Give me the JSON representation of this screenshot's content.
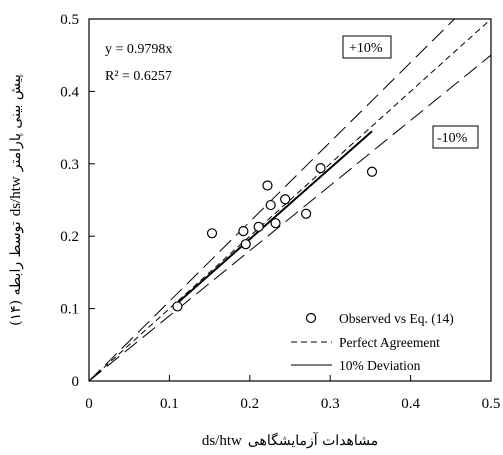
{
  "chart_data": {
    "type": "scatter",
    "xlim": [
      0,
      0.5
    ],
    "ylim": [
      0,
      0.5
    ],
    "x_ticks": [
      "0",
      "0.1",
      "0.2",
      "0.3",
      "0.4",
      "0.5"
    ],
    "y_ticks": [
      "0",
      "0.1",
      "0.2",
      "0.3",
      "0.4",
      "0.5"
    ],
    "xlabel_rtl": "مشاهدات آزمایشگاهی",
    "xlabel_ltr": "ds/htw",
    "ylabel_rtl_before": "پیش بینی پارامتر",
    "ylabel_ltr": "ds/htw",
    "ylabel_rtl_after": "توسط رابطه (۱۴)",
    "equation": "y = 0.9798x",
    "r2": "R² = 0.6257",
    "upper_label": "+10%",
    "lower_label": "-10%",
    "slope": 0.9798,
    "points": [
      {
        "x": 0.11,
        "y": 0.103
      },
      {
        "x": 0.153,
        "y": 0.204
      },
      {
        "x": 0.192,
        "y": 0.207
      },
      {
        "x": 0.195,
        "y": 0.189
      },
      {
        "x": 0.211,
        "y": 0.213
      },
      {
        "x": 0.222,
        "y": 0.27
      },
      {
        "x": 0.226,
        "y": 0.243
      },
      {
        "x": 0.232,
        "y": 0.218
      },
      {
        "x": 0.244,
        "y": 0.251
      },
      {
        "x": 0.27,
        "y": 0.231
      },
      {
        "x": 0.288,
        "y": 0.294
      },
      {
        "x": 0.352,
        "y": 0.289
      }
    ],
    "legend": [
      {
        "label": "Observed vs Eq. (14)",
        "marker": "circle"
      },
      {
        "label": "Perfect Agreement",
        "marker": "short-dash"
      },
      {
        "label": "10% Deviation",
        "marker": "solid"
      }
    ],
    "legend_position": "bottom-right",
    "grid": false
  }
}
